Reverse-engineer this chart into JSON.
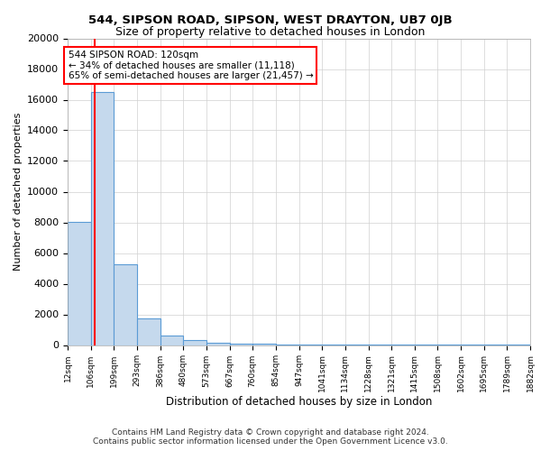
{
  "title_line1": "544, SIPSON ROAD, SIPSON, WEST DRAYTON, UB7 0JB",
  "title_line2": "Size of property relative to detached houses in London",
  "xlabel": "Distribution of detached houses by size in London",
  "ylabel": "Number of detached properties",
  "footnote1": "Contains HM Land Registry data © Crown copyright and database right 2024.",
  "footnote2": "Contains public sector information licensed under the Open Government Licence v3.0.",
  "bar_color": "#c5d9ed",
  "bar_edgecolor": "#5b9bd5",
  "bar_linewidth": 0.8,
  "vline_color": "red",
  "vline_x": 120,
  "annotation_text": "544 SIPSON ROAD: 120sqm\n← 34% of detached houses are smaller (11,118)\n65% of semi-detached houses are larger (21,457) →",
  "annotation_box_edgecolor": "red",
  "annotation_box_facecolor": "white",
  "ylim": [
    0,
    20000
  ],
  "yticks": [
    0,
    2000,
    4000,
    6000,
    8000,
    10000,
    12000,
    14000,
    16000,
    18000,
    20000
  ],
  "grid_color": "#d0d0d0",
  "background_color": "white",
  "bin_edges": [
    12,
    106,
    199,
    293,
    386,
    480,
    573,
    667,
    760,
    854,
    947,
    1041,
    1134,
    1228,
    1321,
    1415,
    1508,
    1602,
    1695,
    1789,
    1882
  ],
  "bin_values": [
    8050,
    16500,
    5250,
    1750,
    600,
    320,
    170,
    110,
    65,
    50,
    35,
    25,
    18,
    12,
    10,
    8,
    6,
    5,
    4,
    3
  ],
  "xtick_labels": [
    "12sqm",
    "106sqm",
    "199sqm",
    "293sqm",
    "386sqm",
    "480sqm",
    "573sqm",
    "667sqm",
    "760sqm",
    "854sqm",
    "947sqm",
    "1041sqm",
    "1134sqm",
    "1228sqm",
    "1321sqm",
    "1415sqm",
    "1508sqm",
    "1602sqm",
    "1695sqm",
    "1789sqm",
    "1882sqm"
  ],
  "title_fontsize": 9.5,
  "subtitle_fontsize": 9.0,
  "ylabel_fontsize": 8,
  "xlabel_fontsize": 8.5,
  "ytick_fontsize": 8,
  "xtick_fontsize": 6.5,
  "annotation_fontsize": 7.5,
  "footnote_fontsize": 6.5
}
